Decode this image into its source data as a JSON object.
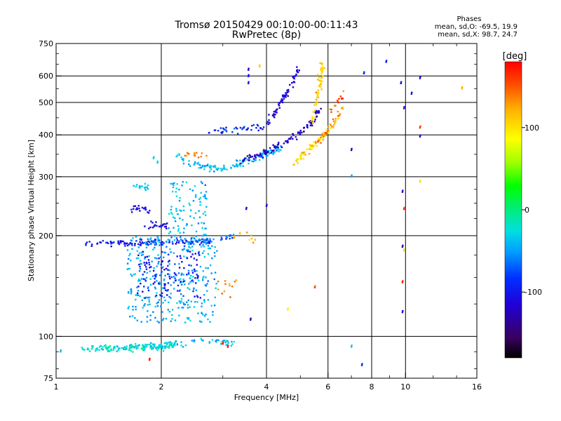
{
  "chart_data": {
    "type": "scatter",
    "title": "Tromsø 20150429 00:10:00-00:11:43",
    "subtitle": "RwPretec (8p)",
    "xlabel": "Frequency [MHz]",
    "ylabel": "Stationary phase Virtual Height [km]",
    "x_scale": "log",
    "y_scale": "log",
    "xlim": [
      1,
      16
    ],
    "ylim": [
      75,
      750
    ],
    "x_ticks": [
      1,
      2,
      4,
      6,
      8,
      10,
      16
    ],
    "x_tick_labels": [
      "1",
      "2",
      "4",
      "6",
      "8",
      "10",
      "16"
    ],
    "y_ticks": [
      75,
      100,
      200,
      300,
      400,
      500,
      600,
      750
    ],
    "y_tick_labels": [
      "75",
      "100",
      "200",
      "300",
      "400",
      "500",
      "600",
      "750"
    ],
    "grid": true,
    "stats_title": "Phases",
    "stats_lines": [
      "mean, sd,O: -69.5, 19.9",
      "mean, sd,X:  98.7, 24.7"
    ],
    "colorbar": {
      "label": "[deg]",
      "range": [
        -180,
        180
      ],
      "ticks": [
        100,
        0,
        -100
      ],
      "tick_labels": [
        "100",
        "0",
        "-100"
      ]
    },
    "traces": [
      {
        "f": [
          1.2,
          1.3,
          1.4,
          1.5,
          1.6,
          1.7,
          1.8,
          1.9,
          2.0,
          2.1,
          2.2
        ],
        "h": [
          93,
          92,
          92,
          92,
          92,
          93,
          93,
          93,
          93,
          94,
          95
        ],
        "phase": -25,
        "n": 180
      },
      {
        "f": [
          2.2,
          2.5,
          3.0,
          3.2
        ],
        "h": [
          95,
          96,
          97,
          96
        ],
        "phase": -40,
        "n": 40
      },
      {
        "f": [
          1.2,
          1.4,
          1.6,
          1.8,
          2.0,
          2.4,
          2.8
        ],
        "h": [
          190,
          190,
          190,
          190,
          190,
          192,
          193
        ],
        "phase": -100,
        "n": 120
      },
      {
        "f": [
          1.8,
          2.2,
          2.6,
          2.9,
          3.2
        ],
        "h": [
          192,
          193,
          195,
          196,
          197
        ],
        "phase": -65,
        "n": 50
      },
      {
        "f": [
          1.65,
          1.75,
          1.85
        ],
        "h": [
          240,
          240,
          240
        ],
        "phase": -110,
        "n": 20
      },
      {
        "f": [
          1.8,
          1.95,
          2.1
        ],
        "h": [
          215,
          215,
          215
        ],
        "phase": -115,
        "n": 22
      },
      {
        "f": [
          1.65,
          1.75,
          1.85
        ],
        "h": [
          280,
          280,
          280
        ],
        "phase": -35,
        "n": 18
      },
      {
        "f": [
          2.2,
          2.4,
          2.6,
          2.8,
          3.0,
          3.2,
          3.4,
          3.6,
          3.8,
          4.0,
          4.2,
          4.4
        ],
        "h": [
          350,
          330,
          322,
          318,
          318,
          322,
          330,
          338,
          345,
          350,
          358,
          368
        ],
        "phase": -40,
        "n": 130
      },
      {
        "f": [
          3.4,
          3.7,
          4.0,
          4.3,
          4.6,
          4.9,
          5.2,
          5.5,
          5.7
        ],
        "h": [
          335,
          345,
          355,
          370,
          385,
          400,
          420,
          450,
          480
        ],
        "phase": -120,
        "n": 110
      },
      {
        "f": [
          4.0,
          4.2,
          4.4,
          4.6,
          4.8,
          5.0
        ],
        "h": [
          430,
          460,
          500,
          540,
          590,
          640
        ],
        "phase": -115,
        "n": 70
      },
      {
        "f": [
          2.7,
          3.0,
          3.3,
          3.6,
          3.9
        ],
        "h": [
          410,
          412,
          415,
          418,
          420
        ],
        "phase": -90,
        "n": 40
      },
      {
        "f": [
          4.8,
          5.1,
          5.4,
          5.7,
          6.0,
          6.3,
          6.6
        ],
        "h": [
          330,
          350,
          370,
          390,
          410,
          440,
          480
        ],
        "phase": 105,
        "n": 70
      },
      {
        "f": [
          5.4,
          5.5,
          5.6,
          5.7,
          5.75,
          5.8
        ],
        "h": [
          430,
          480,
          530,
          580,
          620,
          650
        ],
        "phase": 110,
        "n": 60
      },
      {
        "f": [
          5.6,
          5.9,
          6.2,
          6.5
        ],
        "h": [
          380,
          400,
          430,
          470
        ],
        "phase": 140,
        "n": 30
      },
      {
        "f": [
          6.0,
          6.4,
          6.8
        ],
        "h": [
          470,
          500,
          540
        ],
        "phase": 150,
        "n": 15
      },
      {
        "f": [
          2.3,
          2.5,
          2.7
        ],
        "h": [
          350,
          350,
          345
        ],
        "phase": 130,
        "n": 15
      }
    ],
    "clouds": [
      {
        "f": [
          1.6,
          2.9
        ],
        "h": [
          110,
          200
        ],
        "phase": -45,
        "n": 340
      },
      {
        "f": [
          1.7,
          2.6
        ],
        "h": [
          130,
          180
        ],
        "phase": -100,
        "n": 110
      },
      {
        "f": [
          2.1,
          2.7
        ],
        "h": [
          200,
          290
        ],
        "phase": -40,
        "n": 90
      },
      {
        "f": [
          2.9,
          3.3
        ],
        "h": [
          130,
          150
        ],
        "phase": 140,
        "n": 12
      },
      {
        "f": [
          3.2,
          3.8
        ],
        "h": [
          190,
          205
        ],
        "phase": 115,
        "n": 12
      }
    ],
    "points": [
      {
        "f": 1.03,
        "h": 90,
        "phase": -40
      },
      {
        "f": 3.55,
        "h": 625,
        "phase": -120
      },
      {
        "f": 3.55,
        "h": 570,
        "phase": -110
      },
      {
        "f": 3.55,
        "h": 598,
        "phase": -100
      },
      {
        "f": 3.82,
        "h": 640,
        "phase": 110
      },
      {
        "f": 7.6,
        "h": 610,
        "phase": -110
      },
      {
        "f": 8.8,
        "h": 660,
        "phase": -90
      },
      {
        "f": 9.7,
        "h": 570,
        "phase": -120
      },
      {
        "f": 9.9,
        "h": 480,
        "phase": -120
      },
      {
        "f": 11.0,
        "h": 590,
        "phase": -110
      },
      {
        "f": 11.0,
        "h": 420,
        "phase": 160
      },
      {
        "f": 11.0,
        "h": 395,
        "phase": -110
      },
      {
        "f": 10.4,
        "h": 530,
        "phase": -110
      },
      {
        "f": 14.5,
        "h": 550,
        "phase": 120
      },
      {
        "f": 7.0,
        "h": 360,
        "phase": -130
      },
      {
        "f": 7.0,
        "h": 300,
        "phase": -40
      },
      {
        "f": 9.8,
        "h": 270,
        "phase": -120
      },
      {
        "f": 9.9,
        "h": 240,
        "phase": 170
      },
      {
        "f": 11.0,
        "h": 290,
        "phase": 100
      },
      {
        "f": 9.8,
        "h": 185,
        "phase": -120
      },
      {
        "f": 9.9,
        "h": 180,
        "phase": 100
      },
      {
        "f": 9.8,
        "h": 145,
        "phase": 160
      },
      {
        "f": 9.8,
        "h": 118,
        "phase": -120
      },
      {
        "f": 5.5,
        "h": 140,
        "phase": 160
      },
      {
        "f": 4.6,
        "h": 120,
        "phase": 100
      },
      {
        "f": 3.6,
        "h": 112,
        "phase": -120
      },
      {
        "f": 4.0,
        "h": 245,
        "phase": -130
      },
      {
        "f": 3.5,
        "h": 240,
        "phase": -120
      },
      {
        "f": 7.0,
        "h": 93,
        "phase": -40
      },
      {
        "f": 7.5,
        "h": 82,
        "phase": -100
      },
      {
        "f": 1.85,
        "h": 85,
        "phase": 170
      },
      {
        "f": 3.0,
        "h": 95,
        "phase": 160
      },
      {
        "f": 3.1,
        "h": 93,
        "phase": 175
      },
      {
        "f": 1.9,
        "h": 340,
        "phase": -30
      },
      {
        "f": 1.95,
        "h": 330,
        "phase": -40
      }
    ]
  }
}
